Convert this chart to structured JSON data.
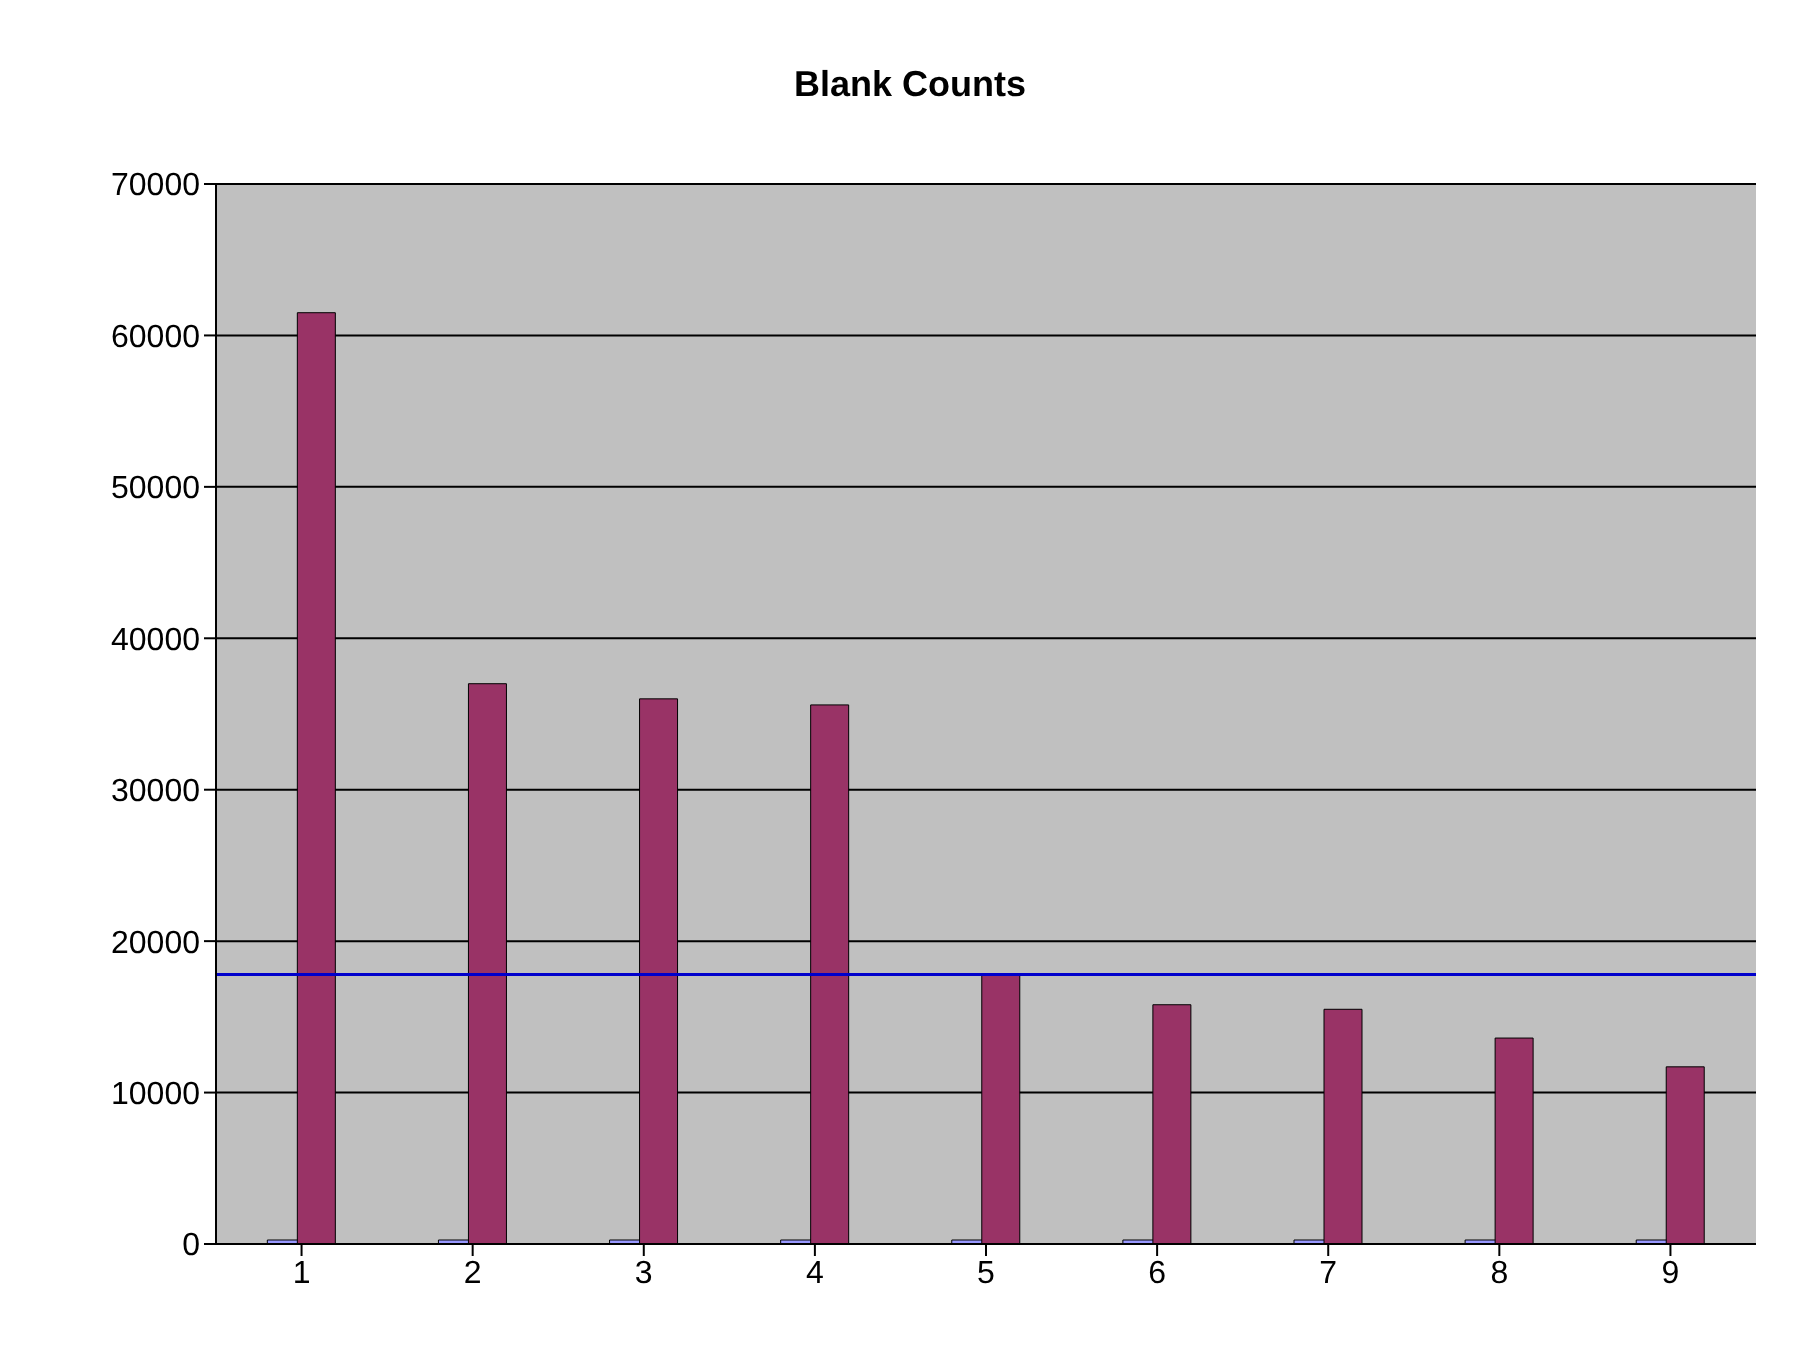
{
  "chart_data": {
    "type": "bar",
    "title": "Blank Counts",
    "categories": [
      "1",
      "2",
      "3",
      "4",
      "5",
      "6",
      "7",
      "8",
      "9"
    ],
    "series": [
      {
        "color": "#9999ff",
        "values": [
          0,
          0,
          0,
          0,
          0,
          0,
          0,
          0,
          0
        ]
      },
      {
        "color": "#993366",
        "values": [
          61500,
          37000,
          36000,
          35600,
          17800,
          15800,
          15500,
          13600,
          11700
        ]
      }
    ],
    "ylim": [
      0,
      70000
    ],
    "yticks": [
      0,
      10000,
      20000,
      30000,
      40000,
      50000,
      60000,
      70000
    ],
    "grid": "y",
    "ref_lines": [
      {
        "axis": "y",
        "value": 17800,
        "color": "#0000cc"
      }
    ]
  }
}
